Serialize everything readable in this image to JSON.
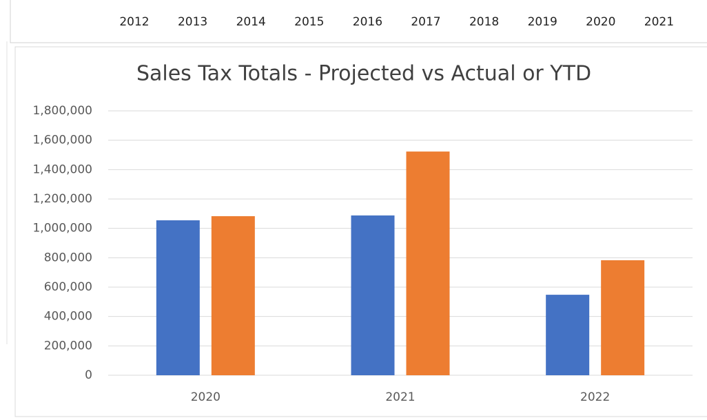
{
  "header": {
    "years": [
      "2012",
      "2013",
      "2014",
      "2015",
      "2016",
      "2017",
      "2018",
      "2019",
      "2020",
      "2021"
    ]
  },
  "chart_data": {
    "type": "bar",
    "title": "Sales Tax Totals - Projected vs Actual or YTD",
    "categories": [
      "2020",
      "2021",
      "2022"
    ],
    "series": [
      {
        "color": "#4472c4",
        "values": [
          1055000,
          1088000,
          548000
        ]
      },
      {
        "color": "#ed7d31",
        "values": [
          1083000,
          1523000,
          783000
        ]
      }
    ],
    "ylim": [
      0,
      1800000
    ],
    "yticks": [
      0,
      {
        "value": 200000,
        "label": "200,000"
      },
      {
        "value": 400000,
        "label": "400,000"
      },
      {
        "value": 600000,
        "label": "600,000"
      },
      {
        "value": 800000,
        "label": "800,000"
      },
      {
        "value": 1000000,
        "label": "1,000,000"
      },
      {
        "value": 1200000,
        "label": "1,200,000"
      },
      {
        "value": 1400000,
        "label": "1,400,000"
      },
      {
        "value": 1600000,
        "label": "1,600,000"
      },
      {
        "value": 1800000,
        "label": "1,800,000"
      }
    ],
    "grid": true
  }
}
